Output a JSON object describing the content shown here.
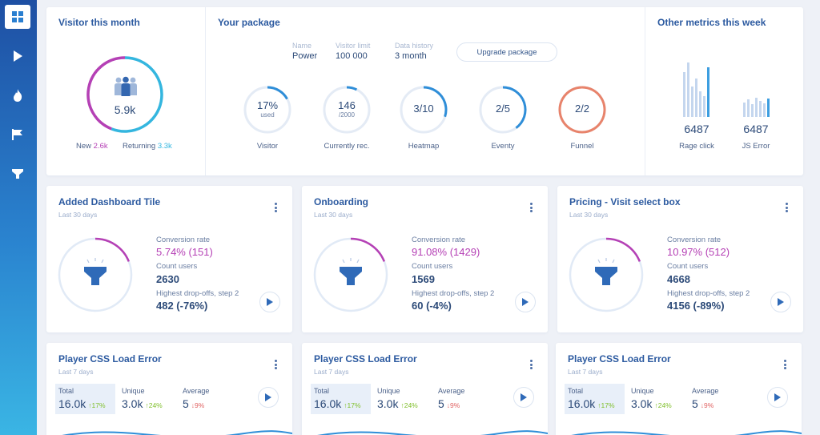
{
  "nav": {
    "items": [
      {
        "icon": "dashboard-grid-icon",
        "active": true
      },
      {
        "icon": "play-icon",
        "active": false
      },
      {
        "icon": "fire-icon",
        "active": false
      },
      {
        "icon": "flag-icon",
        "active": false
      },
      {
        "icon": "funnel-icon",
        "active": false
      }
    ]
  },
  "visitor": {
    "title": "Visitor this month",
    "total": "5.9k",
    "new_label": "New",
    "new_value": "2.6k",
    "returning_label": "Returning",
    "returning_value": "3.3k",
    "colors": {
      "new": "#b540b5",
      "returning": "#34b6df"
    }
  },
  "package": {
    "title": "Your package",
    "name_label": "Name",
    "name_value": "Power",
    "limit_label": "Visitor limit",
    "limit_value": "100 000",
    "history_label": "Data history",
    "history_value": "3 month",
    "upgrade_label": "Upgrade package",
    "gauges": [
      {
        "main": "17%",
        "sub": "used",
        "label": "Visitor",
        "fraction": 0.17,
        "color": "#2f8ed8"
      },
      {
        "main": "146",
        "sub": "/2000",
        "label": "Currently rec.",
        "fraction": 0.073,
        "color": "#2f8ed8"
      },
      {
        "main": "3/10",
        "sub": "",
        "label": "Heatmap",
        "fraction": 0.3,
        "color": "#2f8ed8"
      },
      {
        "main": "2/5",
        "sub": "",
        "label": "Eventy",
        "fraction": 0.4,
        "color": "#2f8ed8"
      },
      {
        "main": "2/2",
        "sub": "",
        "label": "Funnel",
        "fraction": 1.0,
        "color": "#e8836b"
      }
    ]
  },
  "other_metrics": {
    "title": "Other metrics this week",
    "rage_value": "6487",
    "rage_label": "Rage click",
    "js_value": "6487",
    "js_label": "JS Error"
  },
  "funnel_cards": [
    {
      "title": "Added Dashboard Tile",
      "period": "Last 30 days",
      "conv_label": "Conversion rate",
      "conv_value": "5.74% (151)",
      "count_label": "Count users",
      "count_value": "2630",
      "drop_label": "Highest drop-offs, step 2",
      "drop_value": "482 (-76%)",
      "fraction": 0.19
    },
    {
      "title": "Onboarding",
      "period": "Last 30 days",
      "conv_label": "Conversion rate",
      "conv_value": "91.08% (1429)",
      "count_label": "Count users",
      "count_value": "1569",
      "drop_label": "Highest drop-offs, step 2",
      "drop_value": "60 (-4%)",
      "fraction": 0.19
    },
    {
      "title": "Pricing - Visit select box",
      "period": "Last 30 days",
      "conv_label": "Conversion rate",
      "conv_value": "10.97% (512)",
      "count_label": "Count users",
      "count_value": "4668",
      "drop_label": "Highest drop-offs, step 2",
      "drop_value": "4156 (-89%)",
      "fraction": 0.19
    }
  ],
  "error_cards": [
    {
      "title": "Player CSS Load Error",
      "period": "Last 7 days",
      "total_label": "Total",
      "total_value": "16.0k",
      "total_delta": "↑17%",
      "unique_label": "Unique",
      "unique_value": "3.0k",
      "unique_delta": "↑24%",
      "avg_label": "Average",
      "avg_value": "5",
      "avg_delta": "↓9%"
    },
    {
      "title": "Player CSS Load Error",
      "period": "Last 7 days",
      "total_label": "Total",
      "total_value": "16.0k",
      "total_delta": "↑17%",
      "unique_label": "Unique",
      "unique_value": "3.0k",
      "unique_delta": "↑24%",
      "avg_label": "Average",
      "avg_value": "5",
      "avg_delta": "↓9%"
    },
    {
      "title": "Player CSS Load Error",
      "period": "Last 7 days",
      "total_label": "Total",
      "total_value": "16.0k",
      "total_delta": "↑17%",
      "unique_label": "Unique",
      "unique_value": "3.0k",
      "unique_delta": "↑24%",
      "avg_label": "Average",
      "avg_value": "5",
      "avg_delta": "↓9%"
    }
  ]
}
